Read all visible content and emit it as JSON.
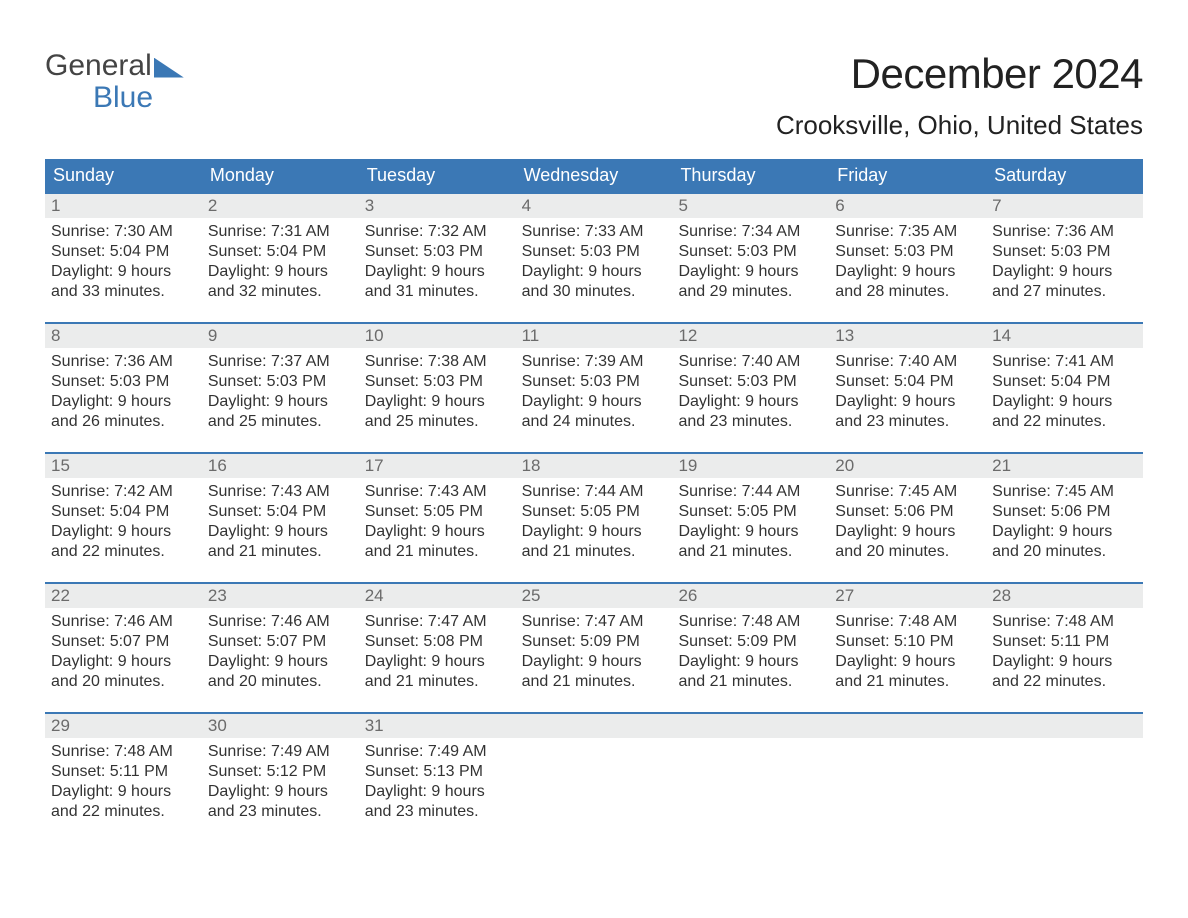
{
  "brand": {
    "line1": "General",
    "line2": "Blue"
  },
  "title": "December 2024",
  "location": "Crooksville, Ohio, United States",
  "colors": {
    "accent": "#3b78b5",
    "header_text": "#ffffff",
    "daynum_bg": "#ebecec",
    "daynum_text": "#6b6b6b",
    "body_text": "#333333",
    "background": "#ffffff"
  },
  "typography": {
    "title_fontsize": 42,
    "location_fontsize": 26,
    "dow_fontsize": 18,
    "daynum_fontsize": 17,
    "body_fontsize": 16,
    "font_family": "Arial Narrow"
  },
  "table": {
    "type": "calendar",
    "columns": [
      "Sunday",
      "Monday",
      "Tuesday",
      "Wednesday",
      "Thursday",
      "Friday",
      "Saturday"
    ],
    "rows": [
      [
        {
          "d": "1",
          "sunrise": "7:30 AM",
          "sunset": "5:04 PM",
          "daylight": "9 hours and 33 minutes."
        },
        {
          "d": "2",
          "sunrise": "7:31 AM",
          "sunset": "5:04 PM",
          "daylight": "9 hours and 32 minutes."
        },
        {
          "d": "3",
          "sunrise": "7:32 AM",
          "sunset": "5:03 PM",
          "daylight": "9 hours and 31 minutes."
        },
        {
          "d": "4",
          "sunrise": "7:33 AM",
          "sunset": "5:03 PM",
          "daylight": "9 hours and 30 minutes."
        },
        {
          "d": "5",
          "sunrise": "7:34 AM",
          "sunset": "5:03 PM",
          "daylight": "9 hours and 29 minutes."
        },
        {
          "d": "6",
          "sunrise": "7:35 AM",
          "sunset": "5:03 PM",
          "daylight": "9 hours and 28 minutes."
        },
        {
          "d": "7",
          "sunrise": "7:36 AM",
          "sunset": "5:03 PM",
          "daylight": "9 hours and 27 minutes."
        }
      ],
      [
        {
          "d": "8",
          "sunrise": "7:36 AM",
          "sunset": "5:03 PM",
          "daylight": "9 hours and 26 minutes."
        },
        {
          "d": "9",
          "sunrise": "7:37 AM",
          "sunset": "5:03 PM",
          "daylight": "9 hours and 25 minutes."
        },
        {
          "d": "10",
          "sunrise": "7:38 AM",
          "sunset": "5:03 PM",
          "daylight": "9 hours and 25 minutes."
        },
        {
          "d": "11",
          "sunrise": "7:39 AM",
          "sunset": "5:03 PM",
          "daylight": "9 hours and 24 minutes."
        },
        {
          "d": "12",
          "sunrise": "7:40 AM",
          "sunset": "5:03 PM",
          "daylight": "9 hours and 23 minutes."
        },
        {
          "d": "13",
          "sunrise": "7:40 AM",
          "sunset": "5:04 PM",
          "daylight": "9 hours and 23 minutes."
        },
        {
          "d": "14",
          "sunrise": "7:41 AM",
          "sunset": "5:04 PM",
          "daylight": "9 hours and 22 minutes."
        }
      ],
      [
        {
          "d": "15",
          "sunrise": "7:42 AM",
          "sunset": "5:04 PM",
          "daylight": "9 hours and 22 minutes."
        },
        {
          "d": "16",
          "sunrise": "7:43 AM",
          "sunset": "5:04 PM",
          "daylight": "9 hours and 21 minutes."
        },
        {
          "d": "17",
          "sunrise": "7:43 AM",
          "sunset": "5:05 PM",
          "daylight": "9 hours and 21 minutes."
        },
        {
          "d": "18",
          "sunrise": "7:44 AM",
          "sunset": "5:05 PM",
          "daylight": "9 hours and 21 minutes."
        },
        {
          "d": "19",
          "sunrise": "7:44 AM",
          "sunset": "5:05 PM",
          "daylight": "9 hours and 21 minutes."
        },
        {
          "d": "20",
          "sunrise": "7:45 AM",
          "sunset": "5:06 PM",
          "daylight": "9 hours and 20 minutes."
        },
        {
          "d": "21",
          "sunrise": "7:45 AM",
          "sunset": "5:06 PM",
          "daylight": "9 hours and 20 minutes."
        }
      ],
      [
        {
          "d": "22",
          "sunrise": "7:46 AM",
          "sunset": "5:07 PM",
          "daylight": "9 hours and 20 minutes."
        },
        {
          "d": "23",
          "sunrise": "7:46 AM",
          "sunset": "5:07 PM",
          "daylight": "9 hours and 20 minutes."
        },
        {
          "d": "24",
          "sunrise": "7:47 AM",
          "sunset": "5:08 PM",
          "daylight": "9 hours and 21 minutes."
        },
        {
          "d": "25",
          "sunrise": "7:47 AM",
          "sunset": "5:09 PM",
          "daylight": "9 hours and 21 minutes."
        },
        {
          "d": "26",
          "sunrise": "7:48 AM",
          "sunset": "5:09 PM",
          "daylight": "9 hours and 21 minutes."
        },
        {
          "d": "27",
          "sunrise": "7:48 AM",
          "sunset": "5:10 PM",
          "daylight": "9 hours and 21 minutes."
        },
        {
          "d": "28",
          "sunrise": "7:48 AM",
          "sunset": "5:11 PM",
          "daylight": "9 hours and 22 minutes."
        }
      ],
      [
        {
          "d": "29",
          "sunrise": "7:48 AM",
          "sunset": "5:11 PM",
          "daylight": "9 hours and 22 minutes."
        },
        {
          "d": "30",
          "sunrise": "7:49 AM",
          "sunset": "5:12 PM",
          "daylight": "9 hours and 23 minutes."
        },
        {
          "d": "31",
          "sunrise": "7:49 AM",
          "sunset": "5:13 PM",
          "daylight": "9 hours and 23 minutes."
        },
        null,
        null,
        null,
        null
      ]
    ],
    "labels": {
      "sunrise_prefix": "Sunrise: ",
      "sunset_prefix": "Sunset: ",
      "daylight_prefix": "Daylight: "
    }
  }
}
